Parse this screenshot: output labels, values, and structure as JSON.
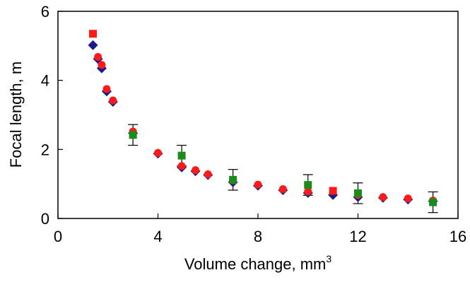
{
  "chart_data": {
    "type": "scatter",
    "title": "",
    "xlabel": "Volume change, mm",
    "xlabel_superscript": "3",
    "ylabel": "Focal length, m",
    "xlim": [
      0,
      16
    ],
    "ylim": [
      0,
      6
    ],
    "x_ticks": [
      "0",
      "4",
      "8",
      "12",
      "16"
    ],
    "y_ticks": [
      "0",
      "2",
      "4",
      "6"
    ],
    "grid": false,
    "legend": "none",
    "series": [
      {
        "marker": "diamond",
        "color": "#1a1a8c",
        "x": [
          1.4,
          1.6,
          1.75,
          1.95,
          2.2,
          3.0,
          4.0,
          4.95,
          5.5,
          6.0,
          7.0,
          8.0,
          9.0,
          10.0,
          11.0,
          12.0,
          13.0,
          14.0,
          15.0
        ],
        "y": [
          5.02,
          4.62,
          4.35,
          3.68,
          3.38,
          2.47,
          1.88,
          1.48,
          1.37,
          1.26,
          1.05,
          0.95,
          0.82,
          0.74,
          0.68,
          0.62,
          0.6,
          0.55,
          0.5
        ]
      },
      {
        "marker": "circle",
        "color": "#ff1a1a",
        "x": [
          1.6,
          1.75,
          1.95,
          2.2,
          3.0,
          4.0,
          4.95,
          5.5,
          6.0,
          7.0,
          8.0,
          9.0,
          10.0,
          12.0,
          13.0,
          14.0,
          15.0
        ],
        "y": [
          4.68,
          4.45,
          3.75,
          3.42,
          2.52,
          1.9,
          1.52,
          1.4,
          1.28,
          1.1,
          0.98,
          0.85,
          0.78,
          0.68,
          0.62,
          0.58,
          0.52
        ]
      },
      {
        "marker": "square",
        "color": "#ff1a1a",
        "x": [
          1.4,
          11.0
        ],
        "y": [
          5.35,
          0.8
        ]
      },
      {
        "marker": "square",
        "color": "#1a8c1a",
        "x": [
          3.0,
          4.95,
          7.0,
          10.0,
          12.0,
          15.0
        ],
        "y": [
          2.42,
          1.82,
          1.12,
          0.97,
          0.73,
          0.47
        ],
        "error": [
          0.3,
          0.3,
          0.3,
          0.3,
          0.3,
          0.3
        ]
      }
    ]
  }
}
